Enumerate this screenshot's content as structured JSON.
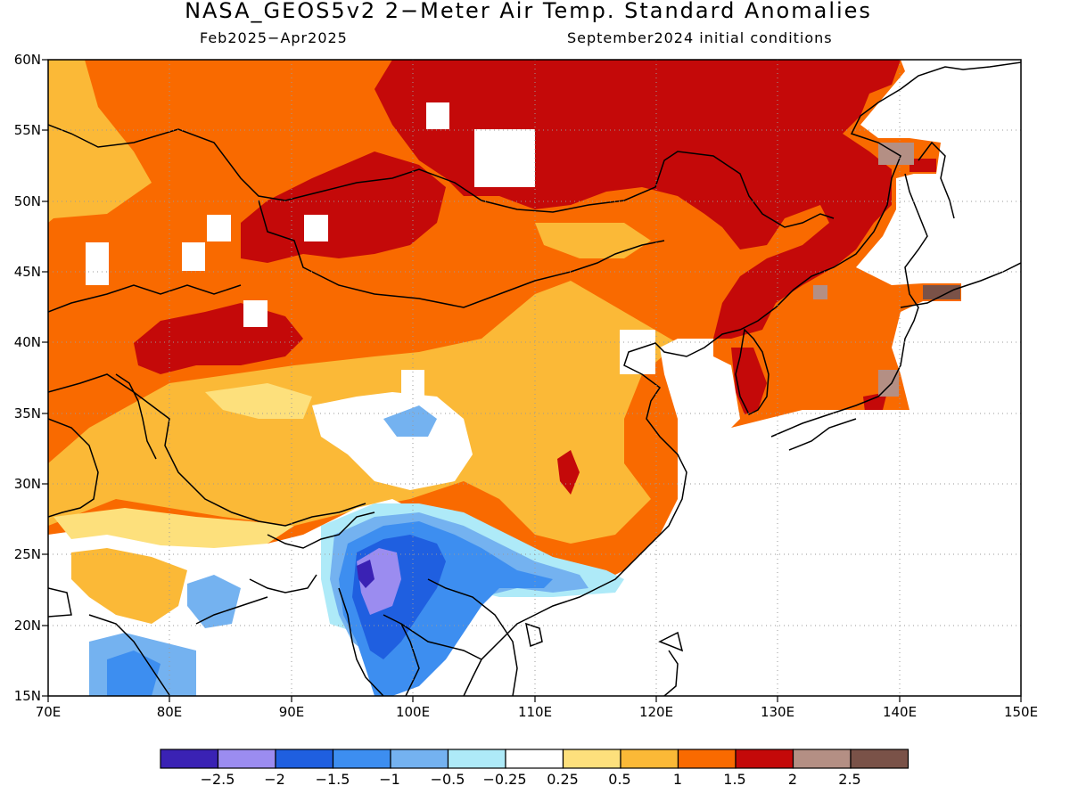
{
  "title": "NASA_GEOS5v2 2-Meter Air Temp. Standard Anomalies",
  "period": "Feb2025-Apr2025",
  "initial_conditions": "September2024 initial conditions",
  "axes": {
    "lon_labels": [
      "70E",
      "80E",
      "90E",
      "100E",
      "110E",
      "120E",
      "130E",
      "140E",
      "150E"
    ],
    "lat_labels": [
      "60N",
      "55N",
      "50N",
      "45N",
      "40N",
      "35N",
      "30N",
      "25N",
      "20N",
      "15N"
    ],
    "lon_range": [
      70,
      150
    ],
    "lat_range": [
      15,
      60
    ],
    "grid": true
  },
  "colorbar": {
    "labels": [
      "-2.5",
      "-2",
      "-1.5",
      "-1",
      "-0.5",
      "-0.25",
      "0.25",
      "0.5",
      "1",
      "1.5",
      "2",
      "2.5"
    ],
    "colors": [
      "#3a22b4",
      "#9b8cf0",
      "#1f5fe0",
      "#3d8ef0",
      "#74b2f0",
      "#aeeaf8",
      "#ffffff",
      "#fde07c",
      "#fbb937",
      "#f96a00",
      "#c40909",
      "#b48f84",
      "#7a5248"
    ]
  }
}
